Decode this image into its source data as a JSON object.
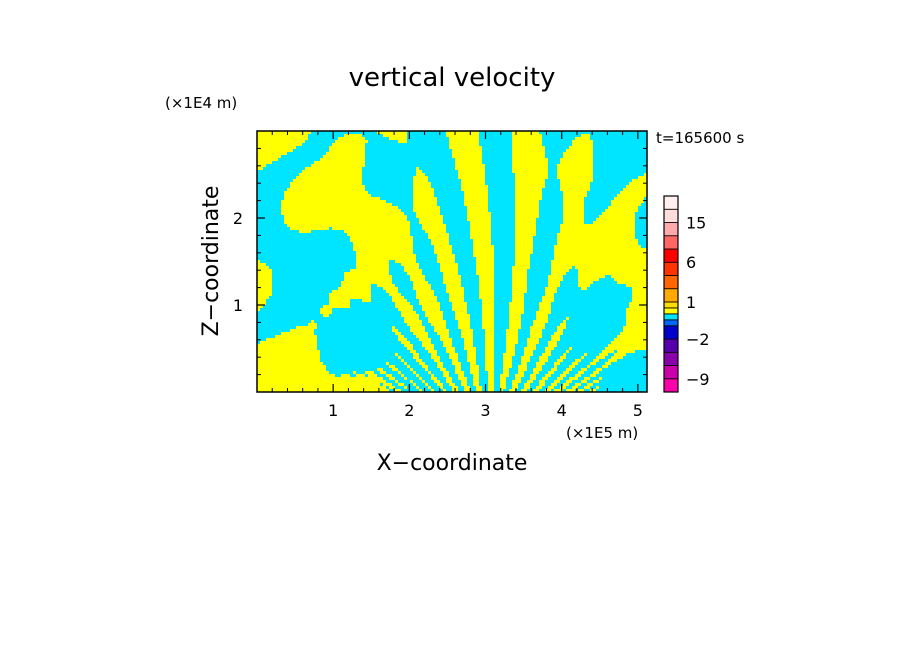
{
  "chart_data": {
    "type": "heatmap",
    "title": "vertical velocity",
    "xlabel": "X−coordinate",
    "ylabel": "Z−coordinate",
    "x_scale_label": "(×1E5 m)",
    "y_scale_label": "(×1E4 m)",
    "time_label": "t=165600 s",
    "xlim": [
      0,
      5.12
    ],
    "ylim": [
      0,
      3.0
    ],
    "x_ticks": [
      1,
      2,
      3,
      4,
      5
    ],
    "y_ticks": [
      1,
      2
    ],
    "field_colors": [
      "#00e5ff",
      "#ffff00"
    ],
    "colorbar": {
      "levels": [
        -12,
        -9,
        -6,
        -4,
        -2,
        -1,
        -0.5,
        0,
        0.5,
        1,
        2,
        4,
        6,
        9,
        12,
        15,
        18,
        21
      ],
      "colors": [
        "#ff00aa",
        "#cc00aa",
        "#8800aa",
        "#5500aa",
        "#0000cc",
        "#0066ff",
        "#00e5ff",
        "#ffff00",
        "#ffdd00",
        "#ffaa00",
        "#ff6600",
        "#ff3300",
        "#ff0000",
        "#ff6666",
        "#ffaaaa",
        "#ffdddd",
        "#ffeeee"
      ],
      "tick_labels": [
        {
          "value": -9,
          "label": "−9"
        },
        {
          "value": -2,
          "label": "−2"
        },
        {
          "value": 1,
          "label": "1"
        },
        {
          "value": 6,
          "label": "6"
        },
        {
          "value": 15,
          "label": "15"
        }
      ]
    }
  }
}
